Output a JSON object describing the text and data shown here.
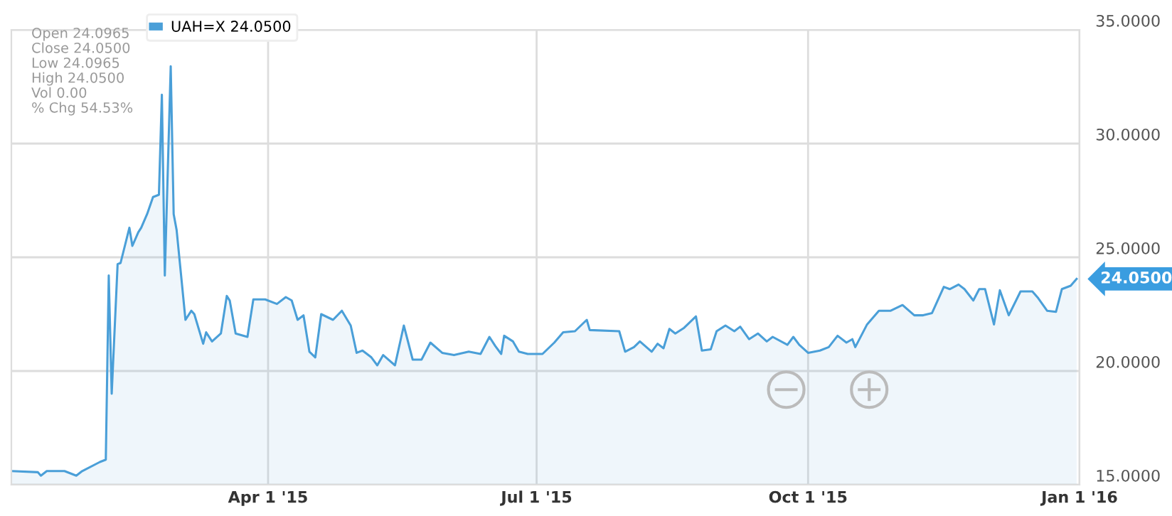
{
  "chart_data": {
    "type": "area",
    "x": [
      "2015-01-04",
      "2015-01-13",
      "2015-01-14",
      "2015-01-16",
      "2015-01-22",
      "2015-01-26",
      "2015-01-28",
      "2015-02-03",
      "2015-02-05",
      "2015-02-06",
      "2015-02-07",
      "2015-02-09",
      "2015-02-10",
      "2015-02-13",
      "2015-02-14",
      "2015-02-16",
      "2015-02-17",
      "2015-02-19",
      "2015-02-21",
      "2015-02-23",
      "2015-02-24",
      "2015-02-25",
      "2015-02-27",
      "2015-02-28",
      "2015-03-01",
      "2015-03-04",
      "2015-03-06",
      "2015-03-07",
      "2015-03-10",
      "2015-03-11",
      "2015-03-13",
      "2015-03-16",
      "2015-03-18",
      "2015-03-19",
      "2015-03-21",
      "2015-03-25",
      "2015-03-27",
      "2015-03-31",
      "2015-04-04",
      "2015-04-07",
      "2015-04-09",
      "2015-04-11",
      "2015-04-13",
      "2015-04-15",
      "2015-04-17",
      "2015-04-19",
      "2015-04-23",
      "2015-04-26",
      "2015-04-29",
      "2015-05-01",
      "2015-05-03",
      "2015-05-06",
      "2015-05-08",
      "2015-05-10",
      "2015-05-14",
      "2015-05-17",
      "2015-05-20",
      "2015-05-23",
      "2015-05-26",
      "2015-05-30",
      "2015-06-03",
      "2015-06-08",
      "2015-06-12",
      "2015-06-15",
      "2015-06-17",
      "2015-06-19",
      "2015-06-20",
      "2015-06-23",
      "2015-06-25",
      "2015-06-28",
      "2015-07-03",
      "2015-07-07",
      "2015-07-10",
      "2015-07-14",
      "2015-07-18",
      "2015-07-19",
      "2015-07-29",
      "2015-07-31",
      "2015-08-03",
      "2015-08-05",
      "2015-08-09",
      "2015-08-11",
      "2015-08-13",
      "2015-08-15",
      "2015-08-17",
      "2015-08-20",
      "2015-08-24",
      "2015-08-26",
      "2015-08-29",
      "2015-08-31",
      "2015-09-03",
      "2015-09-06",
      "2015-09-08",
      "2015-09-11",
      "2015-09-14",
      "2015-09-17",
      "2015-09-19",
      "2015-09-24",
      "2015-09-26",
      "2015-09-28",
      "2015-10-01",
      "2015-10-05",
      "2015-10-08",
      "2015-10-11",
      "2015-10-14",
      "2015-10-16",
      "2015-10-17",
      "2015-10-21",
      "2015-10-25",
      "2015-10-29",
      "2015-11-02",
      "2015-11-06",
      "2015-11-09",
      "2015-11-12",
      "2015-11-16",
      "2015-11-18",
      "2015-11-21",
      "2015-11-23",
      "2015-11-26",
      "2015-11-28",
      "2015-11-30",
      "2015-12-03",
      "2015-12-05",
      "2015-12-08",
      "2015-12-12",
      "2015-12-16",
      "2015-12-18",
      "2015-12-21",
      "2015-12-24",
      "2015-12-26",
      "2015-12-29",
      "2015-12-31"
    ],
    "series": [
      {
        "name": "UAH=X 24.0500",
        "color": "#4a9fd8",
        "values": [
          15.6,
          15.55,
          15.4,
          15.6,
          15.6,
          15.4,
          15.6,
          16.0,
          16.1,
          24.2,
          19.0,
          24.7,
          24.75,
          26.3,
          25.5,
          26.1,
          26.3,
          26.9,
          27.65,
          27.75,
          32.15,
          24.2,
          33.4,
          26.9,
          26.2,
          22.25,
          22.65,
          22.5,
          21.2,
          21.7,
          21.3,
          21.65,
          23.3,
          23.1,
          21.65,
          21.5,
          23.15,
          23.15,
          22.95,
          23.25,
          23.1,
          22.25,
          22.45,
          20.85,
          20.6,
          22.5,
          22.25,
          22.65,
          22.0,
          20.8,
          20.9,
          20.6,
          20.25,
          20.7,
          20.25,
          22.0,
          20.5,
          20.5,
          21.25,
          20.8,
          20.7,
          20.85,
          20.75,
          21.5,
          21.1,
          20.75,
          21.55,
          21.3,
          20.85,
          20.75,
          20.75,
          21.25,
          21.7,
          21.75,
          22.25,
          21.8,
          21.75,
          20.85,
          21.05,
          21.3,
          20.85,
          21.2,
          21.0,
          21.85,
          21.65,
          21.9,
          22.4,
          20.9,
          20.95,
          21.75,
          22.0,
          21.75,
          21.95,
          21.4,
          21.65,
          21.3,
          21.5,
          21.15,
          21.5,
          21.15,
          20.8,
          20.9,
          21.05,
          21.55,
          21.25,
          21.4,
          21.05,
          22.05,
          22.65,
          22.65,
          22.9,
          22.45,
          22.45,
          22.55,
          23.7,
          23.6,
          23.8,
          23.6,
          23.1,
          23.6,
          23.6,
          22.05,
          23.55,
          22.45,
          23.5,
          23.5,
          23.2,
          22.65,
          22.6,
          23.6,
          23.75,
          24.05
        ]
      }
    ],
    "xlim": [
      "2015-01-04",
      "2016-01-01"
    ],
    "xticks": [
      {
        "value": "2015-04-01",
        "label": "Apr 1 '15"
      },
      {
        "value": "2015-07-01",
        "label": "Jul 1 '15"
      },
      {
        "value": "2015-10-01",
        "label": "Oct 1 '15"
      },
      {
        "value": "2016-01-01",
        "label": "Jan 1 '16"
      }
    ],
    "ylim": [
      15,
      35
    ],
    "yticks": [
      {
        "value": 15,
        "label": "15.0000"
      },
      {
        "value": 20,
        "label": "20.0000"
      },
      {
        "value": 25,
        "label": "25.0000"
      },
      {
        "value": 30,
        "label": "30.0000"
      },
      {
        "value": 35,
        "label": "35.0000"
      }
    ],
    "grid": true,
    "legend": "top left",
    "annotations": [
      "Open 24.0965",
      "Close 24.0500",
      "Low 24.0965",
      "High 24.0500",
      "Vol 0.00",
      "% Chg 54.53%",
      {
        "text": "24.0500",
        "x": "2015-12-31",
        "y": 24.05
      }
    ]
  }
}
